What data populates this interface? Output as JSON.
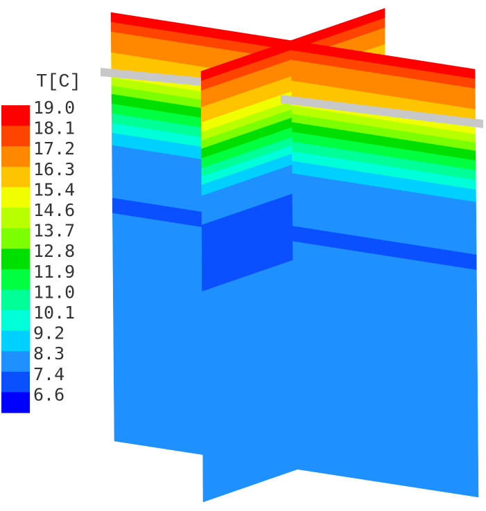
{
  "legend": {
    "title": "T[C]",
    "labels": [
      "19.0",
      "18.1",
      "17.2",
      "16.3",
      "15.4",
      "14.6",
      "13.7",
      "12.8",
      "11.9",
      "11.0",
      "10.1",
      "9.2",
      "8.3",
      "7.4",
      "6.6"
    ],
    "colors": [
      "#ff0000",
      "#ff4400",
      "#ff8800",
      "#ffc400",
      "#f0ff00",
      "#b8ff00",
      "#7cff00",
      "#00e000",
      "#00ff40",
      "#00ff96",
      "#00ffd8",
      "#00d0ff",
      "#1e90ff",
      "#0a50ff",
      "#0000ff"
    ]
  }
}
